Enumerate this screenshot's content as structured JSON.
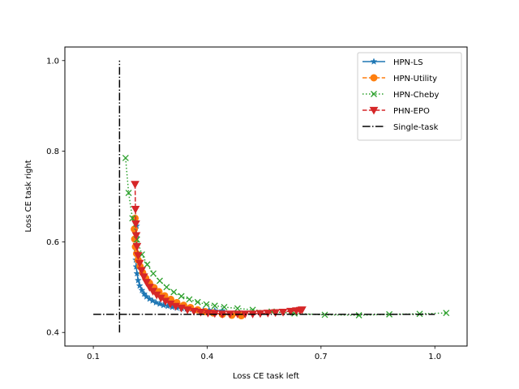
{
  "chart_data": {
    "type": "line",
    "xlabel": "Loss CE task left",
    "ylabel": "Loss CE task right",
    "xlim": [
      0.025,
      1.085
    ],
    "ylim": [
      0.37,
      1.03
    ],
    "xticks": [
      0.1,
      0.4,
      0.7,
      1.0
    ],
    "xtick_labels": [
      "0.1",
      "0.4",
      "0.7",
      "1.0"
    ],
    "yticks": [
      0.4,
      0.6,
      0.8,
      1.0
    ],
    "ytick_labels": [
      "0.4",
      "0.6",
      "0.8",
      "1.0"
    ],
    "grid": false,
    "legend_position": "top-right",
    "series": [
      {
        "name": "HPN-LS",
        "color": "#1f77b4",
        "line": "solid",
        "marker": "star",
        "points": [
          [
            0.214,
            0.635
          ],
          [
            0.213,
            0.61
          ],
          [
            0.212,
            0.585
          ],
          [
            0.212,
            0.56
          ],
          [
            0.213,
            0.545
          ],
          [
            0.215,
            0.53
          ],
          [
            0.218,
            0.515
          ],
          [
            0.222,
            0.503
          ],
          [
            0.228,
            0.493
          ],
          [
            0.234,
            0.485
          ],
          [
            0.24,
            0.479
          ],
          [
            0.248,
            0.474
          ],
          [
            0.256,
            0.47
          ],
          [
            0.265,
            0.466
          ],
          [
            0.275,
            0.463
          ],
          [
            0.285,
            0.46
          ],
          [
            0.296,
            0.458
          ],
          [
            0.308,
            0.456
          ],
          [
            0.32,
            0.454
          ],
          [
            0.333,
            0.453
          ],
          [
            0.346,
            0.452
          ],
          [
            0.36,
            0.451
          ],
          [
            0.375,
            0.45
          ],
          [
            0.39,
            0.449
          ],
          [
            0.405,
            0.449
          ],
          [
            0.42,
            0.448
          ],
          [
            0.44,
            0.448
          ]
        ]
      },
      {
        "name": "HPN-Utility",
        "color": "#ff7f0e",
        "line": "dashed",
        "marker": "circle",
        "points": [
          [
            0.21,
            0.652
          ],
          [
            0.208,
            0.628
          ],
          [
            0.209,
            0.606
          ],
          [
            0.211,
            0.589
          ],
          [
            0.214,
            0.574
          ],
          [
            0.218,
            0.56
          ],
          [
            0.223,
            0.546
          ],
          [
            0.23,
            0.532
          ],
          [
            0.238,
            0.52
          ],
          [
            0.248,
            0.509
          ],
          [
            0.26,
            0.499
          ],
          [
            0.273,
            0.49
          ],
          [
            0.288,
            0.481
          ],
          [
            0.304,
            0.473
          ],
          [
            0.32,
            0.466
          ],
          [
            0.338,
            0.46
          ],
          [
            0.356,
            0.455
          ],
          [
            0.375,
            0.45
          ],
          [
            0.395,
            0.446
          ],
          [
            0.416,
            0.443
          ],
          [
            0.44,
            0.44
          ],
          [
            0.465,
            0.438
          ],
          [
            0.49,
            0.437
          ]
        ]
      },
      {
        "name": "HPN-Cheby",
        "color": "#2ca02c",
        "line": "dotted",
        "marker": "x",
        "points": [
          [
            0.185,
            0.785
          ],
          [
            0.193,
            0.708
          ],
          [
            0.203,
            0.652
          ],
          [
            0.215,
            0.605
          ],
          [
            0.228,
            0.572
          ],
          [
            0.242,
            0.55
          ],
          [
            0.258,
            0.53
          ],
          [
            0.275,
            0.514
          ],
          [
            0.293,
            0.5
          ],
          [
            0.312,
            0.489
          ],
          [
            0.332,
            0.48
          ],
          [
            0.353,
            0.473
          ],
          [
            0.375,
            0.467
          ],
          [
            0.398,
            0.462
          ],
          [
            0.42,
            0.459
          ],
          [
            0.445,
            0.456
          ],
          [
            0.48,
            0.453
          ],
          [
            0.52,
            0.45
          ],
          [
            0.57,
            0.446
          ],
          [
            0.63,
            0.442
          ],
          [
            0.71,
            0.439
          ],
          [
            0.8,
            0.438
          ],
          [
            0.88,
            0.44
          ],
          [
            0.96,
            0.441
          ],
          [
            1.03,
            0.443
          ]
        ]
      },
      {
        "name": "PHN-EPO",
        "color": "#d62728",
        "line": "dashed",
        "marker": "triangle-down",
        "points": [
          [
            0.21,
            0.727
          ],
          [
            0.211,
            0.672
          ],
          [
            0.212,
            0.64
          ],
          [
            0.213,
            0.614
          ],
          [
            0.215,
            0.59
          ],
          [
            0.218,
            0.57
          ],
          [
            0.222,
            0.553
          ],
          [
            0.227,
            0.537
          ],
          [
            0.233,
            0.523
          ],
          [
            0.24,
            0.511
          ],
          [
            0.248,
            0.5
          ],
          [
            0.257,
            0.491
          ],
          [
            0.267,
            0.483
          ],
          [
            0.278,
            0.476
          ],
          [
            0.29,
            0.469
          ],
          [
            0.303,
            0.463
          ],
          [
            0.317,
            0.458
          ],
          [
            0.332,
            0.454
          ],
          [
            0.348,
            0.45
          ],
          [
            0.365,
            0.447
          ],
          [
            0.383,
            0.445
          ],
          [
            0.402,
            0.443
          ],
          [
            0.42,
            0.442
          ],
          [
            0.44,
            0.441
          ],
          [
            0.46,
            0.441
          ],
          [
            0.48,
            0.441
          ],
          [
            0.5,
            0.441
          ],
          [
            0.52,
            0.441
          ],
          [
            0.54,
            0.442
          ],
          [
            0.56,
            0.443
          ],
          [
            0.58,
            0.444
          ],
          [
            0.6,
            0.445
          ],
          [
            0.62,
            0.447
          ],
          [
            0.635,
            0.448
          ],
          [
            0.645,
            0.449
          ],
          [
            0.65,
            0.45
          ]
        ]
      },
      {
        "name": "Single-task",
        "color": "#000000",
        "line": "dashdot",
        "marker": "none",
        "segments": [
          [
            [
              0.169,
              0.4
            ],
            [
              0.169,
              1.0
            ]
          ],
          [
            [
              0.1,
              0.44
            ],
            [
              1.0,
              0.44
            ]
          ]
        ]
      }
    ]
  }
}
